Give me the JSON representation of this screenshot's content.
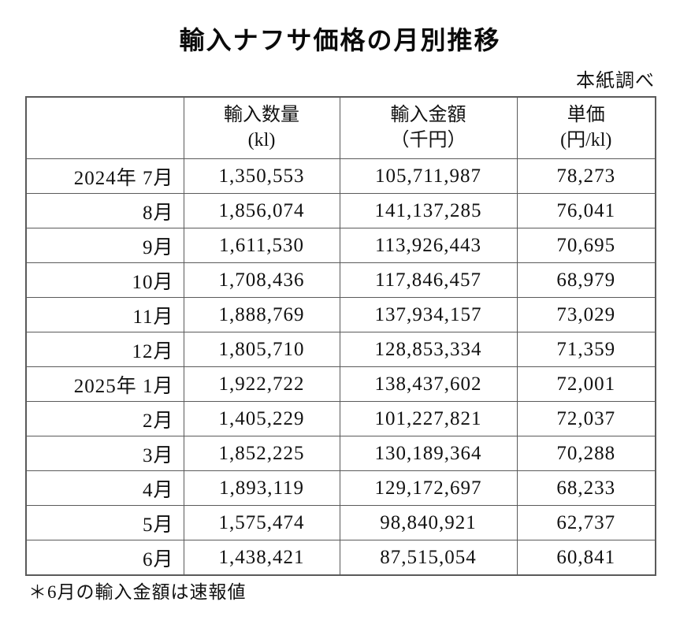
{
  "title": "輸入ナフサ価格の月別推移",
  "source_note": "本紙調べ",
  "table": {
    "columns": [
      {
        "title": "",
        "unit": ""
      },
      {
        "title": "輸入数量",
        "unit": "(kl)"
      },
      {
        "title": "輸入金額",
        "unit": "（千円）"
      },
      {
        "title": "単価",
        "unit": "(円/kl)"
      }
    ],
    "rows": [
      {
        "month": "2024年 7月",
        "volume": "1,350,553",
        "amount": "105,711,987",
        "unit_price": "78,273"
      },
      {
        "month": "8月",
        "volume": "1,856,074",
        "amount": "141,137,285",
        "unit_price": "76,041"
      },
      {
        "month": "9月",
        "volume": "1,611,530",
        "amount": "113,926,443",
        "unit_price": "70,695"
      },
      {
        "month": "10月",
        "volume": "1,708,436",
        "amount": "117,846,457",
        "unit_price": "68,979"
      },
      {
        "month": "11月",
        "volume": "1,888,769",
        "amount": "137,934,157",
        "unit_price": "73,029"
      },
      {
        "month": "12月",
        "volume": "1,805,710",
        "amount": "128,853,334",
        "unit_price": "71,359"
      },
      {
        "month": "2025年 1月",
        "volume": "1,922,722",
        "amount": "138,437,602",
        "unit_price": "72,001"
      },
      {
        "month": "2月",
        "volume": "1,405,229",
        "amount": "101,227,821",
        "unit_price": "72,037"
      },
      {
        "month": "3月",
        "volume": "1,852,225",
        "amount": "130,189,364",
        "unit_price": "70,288"
      },
      {
        "month": "4月",
        "volume": "1,893,119",
        "amount": "129,172,697",
        "unit_price": "68,233"
      },
      {
        "month": "5月",
        "volume": "1,575,474",
        "amount": "98,840,921",
        "unit_price": "62,737"
      },
      {
        "month": "6月",
        "volume": "1,438,421",
        "amount": "87,515,054",
        "unit_price": "60,841"
      }
    ]
  },
  "footnote": "＊6月の輸入金額は速報値"
}
